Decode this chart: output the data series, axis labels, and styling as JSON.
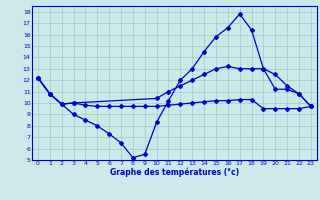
{
  "bg_color": "#cce8e8",
  "line_color": "#0000cc",
  "grid_color": "#99cccc",
  "xlabel": "Graphe des températures (°c)",
  "xlim": [
    -0.5,
    23.5
  ],
  "ylim": [
    5,
    18.5
  ],
  "xticks": [
    0,
    1,
    2,
    3,
    4,
    5,
    6,
    7,
    8,
    9,
    10,
    11,
    12,
    13,
    14,
    15,
    16,
    17,
    18,
    19,
    20,
    21,
    22,
    23
  ],
  "yticks": [
    5,
    6,
    7,
    8,
    9,
    10,
    11,
    12,
    13,
    14,
    15,
    16,
    17,
    18
  ],
  "line_dip_x": [
    0,
    1,
    2,
    3,
    4,
    5,
    6,
    7,
    8,
    9,
    10,
    11,
    12,
    13,
    14,
    15,
    16,
    17,
    18,
    19,
    20,
    21,
    22,
    23
  ],
  "line_dip_y": [
    12.2,
    10.8,
    9.9,
    9.0,
    8.5,
    8.0,
    7.3,
    6.5,
    5.2,
    5.5,
    8.3,
    10.2,
    12.0,
    13.0,
    14.5,
    15.8,
    16.6,
    17.8,
    16.4,
    13.0,
    11.2,
    11.2,
    10.8,
    9.7
  ],
  "line_top_x": [
    0,
    1,
    2,
    3,
    10,
    11,
    12,
    13,
    14,
    15,
    16,
    17,
    18,
    19,
    20,
    21,
    22,
    23
  ],
  "line_top_y": [
    12.2,
    10.8,
    9.9,
    10.0,
    10.4,
    11.0,
    11.5,
    12.0,
    12.5,
    13.0,
    13.2,
    13.0,
    13.0,
    13.0,
    12.5,
    11.5,
    10.8,
    9.7
  ],
  "line_flat_x": [
    0,
    1,
    2,
    3,
    4,
    5,
    6,
    7,
    8,
    9,
    10,
    11,
    12,
    13,
    14,
    15,
    16,
    17,
    18,
    19,
    20,
    21,
    22,
    23
  ],
  "line_flat_y": [
    12.2,
    10.8,
    9.9,
    10.0,
    9.8,
    9.7,
    9.7,
    9.7,
    9.7,
    9.7,
    9.7,
    9.8,
    9.9,
    10.0,
    10.1,
    10.2,
    10.2,
    10.3,
    10.3,
    9.5,
    9.5,
    9.5,
    9.5,
    9.7
  ]
}
